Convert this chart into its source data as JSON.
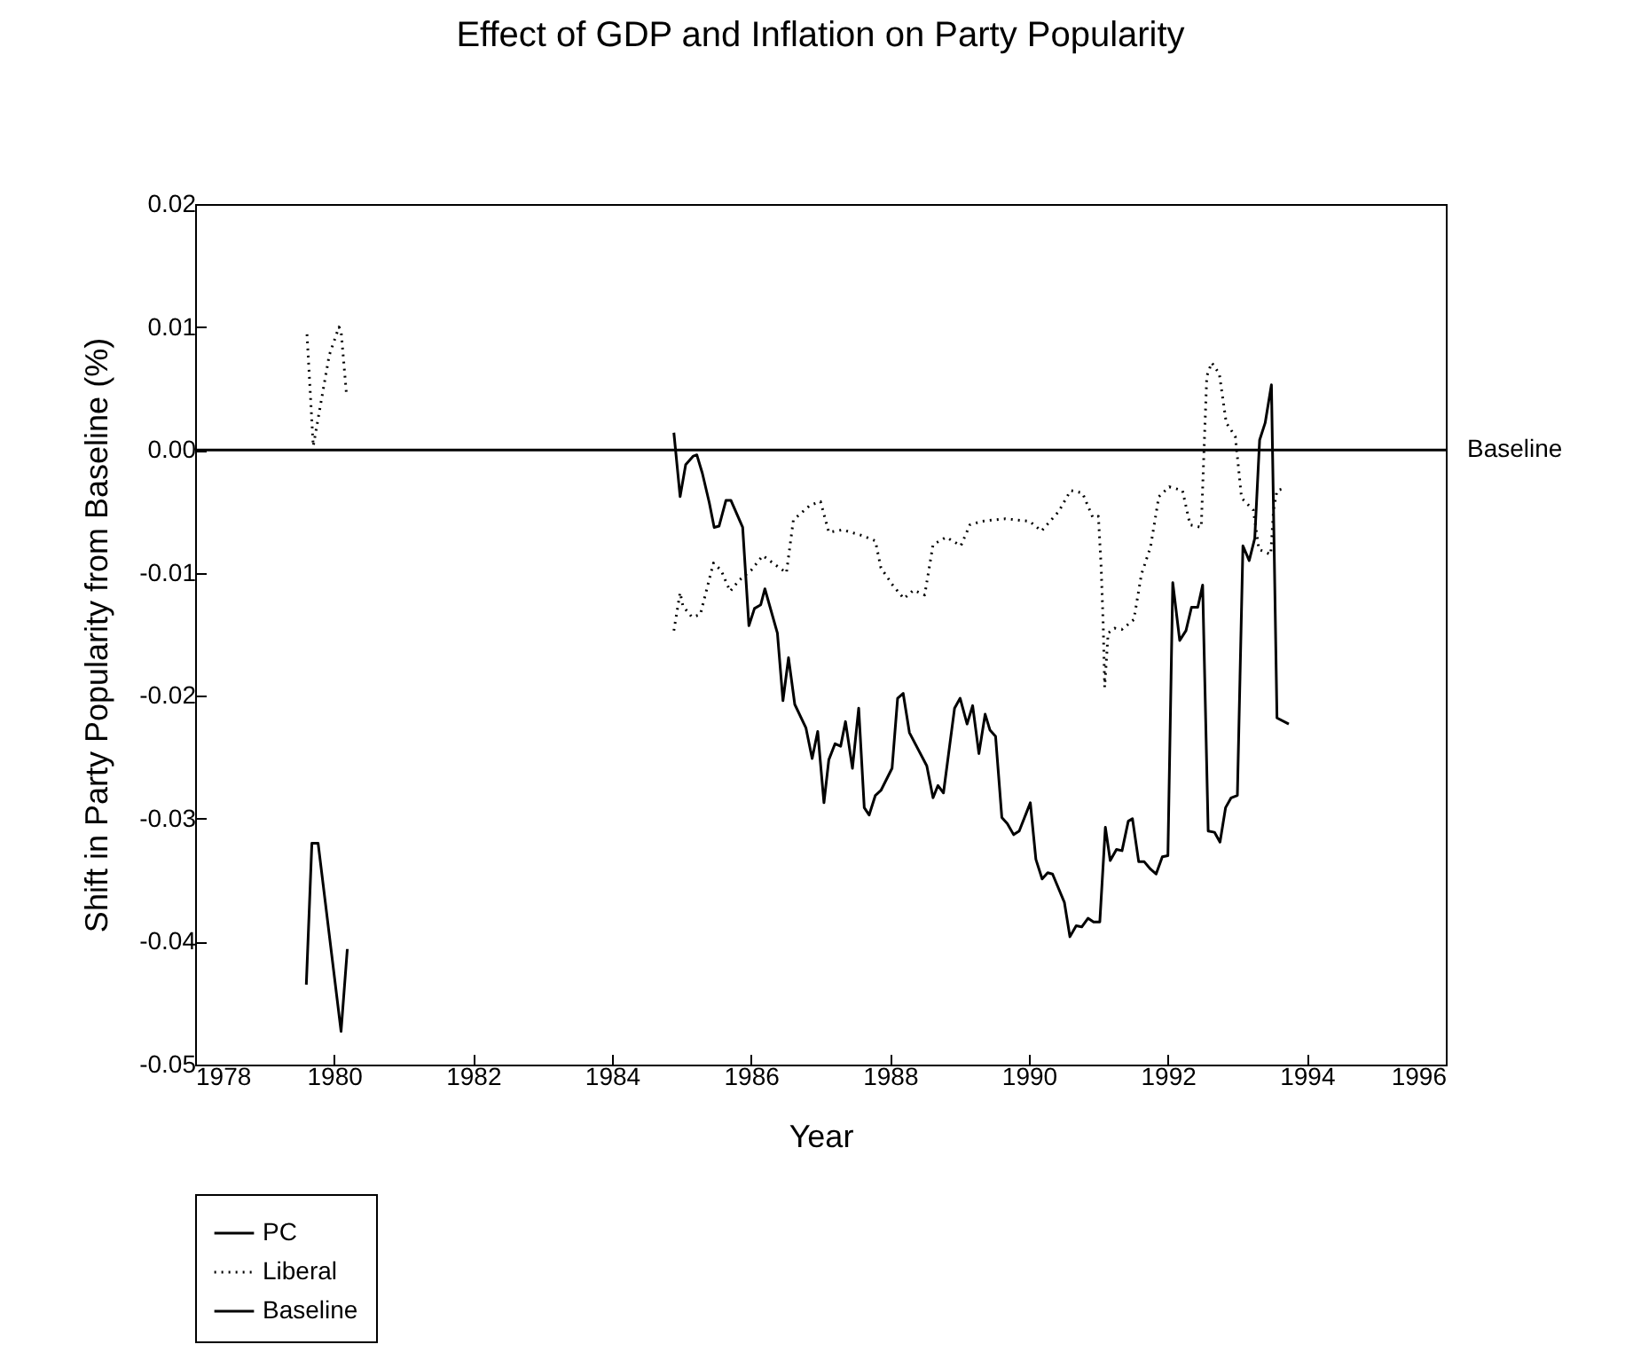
{
  "chart_data": {
    "type": "line",
    "title": "Effect of GDP and Inflation on Party Popularity",
    "xlabel": "Year",
    "ylabel": "Shift in Party Popularity from Baseline (%)",
    "xlim": [
      1978,
      1996
    ],
    "xticks": [
      1978,
      1980,
      1982,
      1984,
      1986,
      1988,
      1990,
      1992,
      1994,
      1996
    ],
    "ylim": [
      -0.05,
      0.02
    ],
    "yticks": [
      -0.05,
      -0.04,
      -0.03,
      -0.02,
      -0.01,
      {
        "value": 0,
        "label": "0.00"
      },
      0.01,
      0.02
    ],
    "grid": false,
    "legend": "bottom left",
    "annotations": [
      {
        "text": "Baseline",
        "x": 1996,
        "y": 0
      }
    ],
    "series": [
      {
        "name": "PC",
        "color": "#000000",
        "line_style": "solid",
        "x": [
          1979.6,
          1979.68,
          1979.77,
          1980.1,
          1980.19,
          1982,
          1984.89,
          1984.98,
          1985.06,
          1985.17,
          1985.22,
          1985.3,
          1985.4,
          1985.47,
          1985.54,
          1985.64,
          1985.71,
          1985.88,
          1985.97,
          1986.05,
          1986.14,
          1986.2,
          1986.38,
          1986.46,
          1986.54,
          1986.63,
          1986.79,
          1986.88,
          1986.96,
          1987.05,
          1987.12,
          1987.21,
          1987.29,
          1987.36,
          1987.46,
          1987.55,
          1987.63,
          1987.7,
          1987.79,
          1987.87,
          1988.03,
          1988.11,
          1988.19,
          1988.28,
          1988.53,
          1988.62,
          1988.69,
          1988.77,
          1988.93,
          1989.01,
          1989.11,
          1989.19,
          1989.28,
          1989.37,
          1989.44,
          1989.52,
          1989.61,
          1989.69,
          1989.78,
          1989.86,
          1990.02,
          1990.1,
          1990.19,
          1990.27,
          1990.34,
          1990.51,
          1990.59,
          1990.68,
          1990.76,
          1990.85,
          1990.93,
          1991.02,
          1991.1,
          1991.17,
          1991.26,
          1991.34,
          1991.43,
          1991.49,
          1991.58,
          1991.66,
          1991.75,
          1991.83,
          1991.92,
          1992.0,
          1992.07,
          1992.17,
          1992.26,
          1992.34,
          1992.43,
          1992.5,
          1992.58,
          1992.67,
          1992.75,
          1992.83,
          1992.91,
          1993.0,
          1993.08,
          1993.17,
          1993.25,
          1993.32,
          1993.4,
          1993.49,
          1993.57,
          1993.74
        ],
        "values": [
          -0.0435,
          -0.032,
          -0.032,
          -0.0473,
          -0.0406,
          null,
          0.0014,
          -0.0038,
          -0.0012,
          -0.0005,
          -0.0004,
          -0.0019,
          -0.0043,
          -0.0063,
          -0.0062,
          -0.0041,
          -0.0041,
          -0.0063,
          -0.0143,
          -0.0129,
          -0.0126,
          -0.0113,
          -0.0149,
          -0.0204,
          -0.0169,
          -0.0207,
          -0.0226,
          -0.0251,
          -0.0229,
          -0.0287,
          -0.0252,
          -0.0239,
          -0.0241,
          -0.0221,
          -0.0259,
          -0.021,
          -0.0291,
          -0.0297,
          -0.0281,
          -0.0277,
          -0.0259,
          -0.0202,
          -0.0198,
          -0.023,
          -0.0257,
          -0.0283,
          -0.0273,
          -0.0279,
          -0.021,
          -0.0202,
          -0.0223,
          -0.0208,
          -0.0247,
          -0.0215,
          -0.0228,
          -0.0233,
          -0.0299,
          -0.0304,
          -0.0313,
          -0.031,
          -0.0287,
          -0.0333,
          -0.0349,
          -0.0344,
          -0.0345,
          -0.0368,
          -0.0396,
          -0.0387,
          -0.0388,
          -0.0381,
          -0.0384,
          -0.0384,
          -0.0307,
          -0.0334,
          -0.0325,
          -0.0326,
          -0.0302,
          -0.03,
          -0.0335,
          -0.0335,
          -0.0341,
          -0.0345,
          -0.0331,
          -0.033,
          -0.0108,
          -0.0155,
          -0.0147,
          -0.0128,
          -0.0128,
          -0.011,
          -0.031,
          -0.0311,
          -0.0319,
          -0.0291,
          -0.0283,
          -0.0281,
          -0.0078,
          -0.009,
          -0.0072,
          0.0008,
          0.0022,
          0.0053,
          -0.0218,
          -0.0223
        ]
      },
      {
        "name": "Liberal",
        "color": "#000000",
        "line_style": "dotted",
        "x": [
          1979.61,
          1979.7,
          1979.93,
          1980.07,
          1980.1,
          1980.18,
          1982,
          1984.89,
          1984.98,
          1985.02,
          1985.15,
          1985.27,
          1985.46,
          1985.57,
          1985.7,
          1985.83,
          1986.0,
          1986.17,
          1986.34,
          1986.51,
          1986.61,
          1986.85,
          1987.0,
          1987.12,
          1987.32,
          1987.62,
          1987.79,
          1987.87,
          1988.04,
          1988.2,
          1988.34,
          1988.5,
          1988.62,
          1988.81,
          1989.02,
          1989.15,
          1989.32,
          1989.66,
          1990.01,
          1990.18,
          1990.43,
          1990.6,
          1990.77,
          1990.92,
          1991.0,
          1991.04,
          1991.07,
          1991.09,
          1991.14,
          1991.23,
          1991.34,
          1991.51,
          1991.62,
          1991.75,
          1991.87,
          1992.02,
          1992.21,
          1992.32,
          1992.48,
          1992.52,
          1992.56,
          1992.63,
          1992.74,
          1992.84,
          1992.97,
          1993.06,
          1993.23,
          1993.31,
          1993.48,
          1993.52,
          1993.57,
          1993.69
        ],
        "values": [
          0.0094,
          0.0003,
          0.0077,
          0.01,
          0.0097,
          0.0044,
          null,
          -0.0147,
          -0.0116,
          -0.0127,
          -0.0136,
          -0.0134,
          -0.0092,
          -0.0098,
          -0.0115,
          -0.0106,
          -0.0098,
          -0.0086,
          -0.0093,
          -0.01,
          -0.0057,
          -0.0045,
          -0.0042,
          -0.0067,
          -0.0065,
          -0.007,
          -0.0074,
          -0.0096,
          -0.011,
          -0.0121,
          -0.0114,
          -0.0118,
          -0.0077,
          -0.0071,
          -0.0078,
          -0.0061,
          -0.0058,
          -0.0056,
          -0.0058,
          -0.0066,
          -0.005,
          -0.0033,
          -0.0035,
          -0.0055,
          -0.0054,
          -0.0096,
          -0.0144,
          -0.0193,
          -0.0149,
          -0.0145,
          -0.0146,
          -0.0138,
          -0.0101,
          -0.0079,
          -0.0038,
          -0.003,
          -0.0033,
          -0.0061,
          -0.0063,
          0.0,
          0.006,
          0.0071,
          0.0062,
          0.0022,
          0.0011,
          -0.0039,
          -0.0049,
          -0.0081,
          -0.0085,
          -0.0049,
          -0.0033,
          -0.0031
        ]
      },
      {
        "name": "Baseline",
        "color": "#000000",
        "line_style": "solid",
        "x": [
          1978,
          1996
        ],
        "values": [
          0,
          0
        ]
      }
    ]
  }
}
